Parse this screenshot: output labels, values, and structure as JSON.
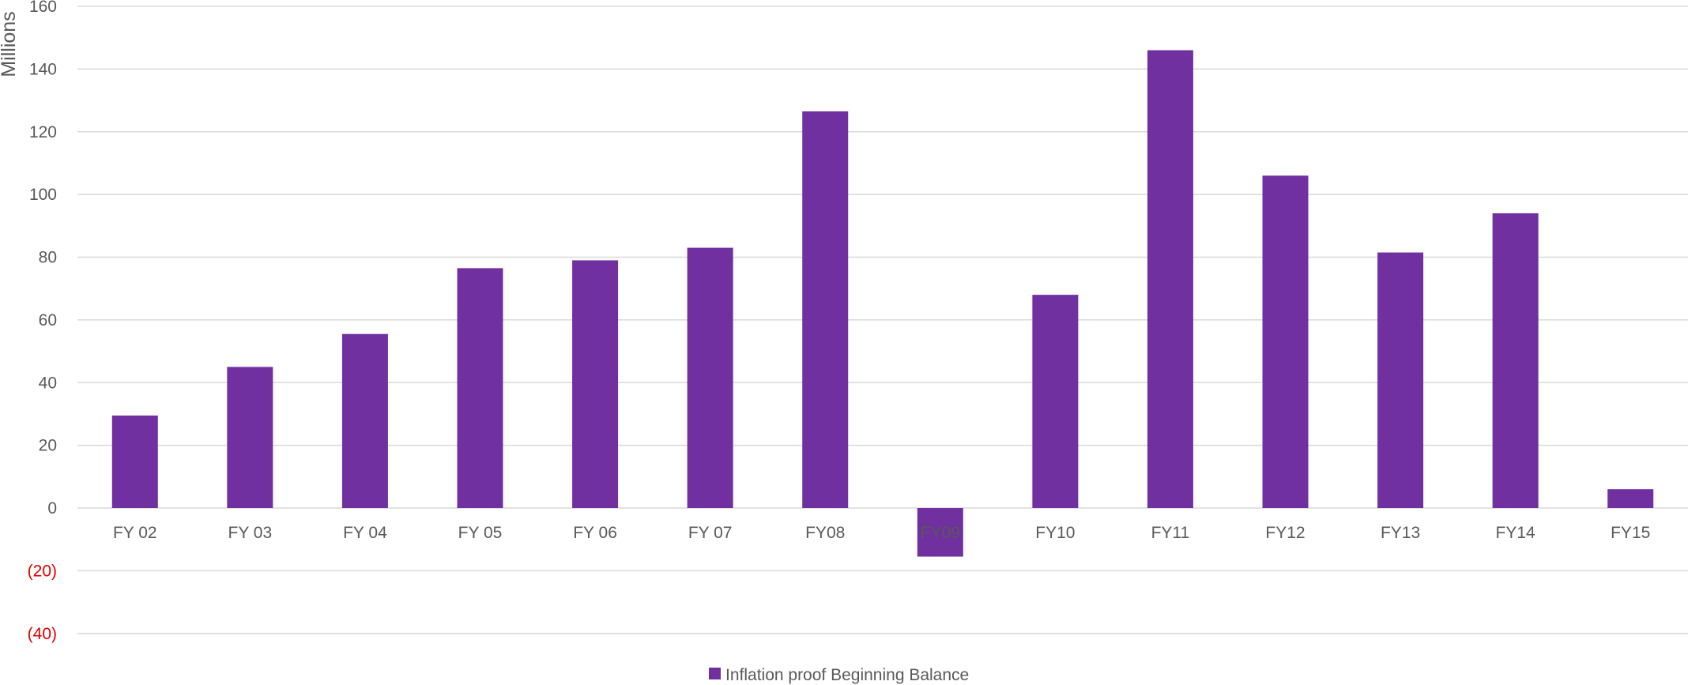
{
  "chart_data": {
    "type": "bar",
    "title": "",
    "xlabel": "",
    "ylabel": "Millions",
    "ylim": [
      -40,
      160
    ],
    "yticks": [
      160,
      140,
      120,
      100,
      80,
      60,
      40,
      20,
      0,
      -20,
      -40
    ],
    "ytick_labels": [
      "160",
      "140",
      "120",
      "100",
      "80",
      "60",
      "40",
      "20",
      "0",
      "(20)",
      "(40)"
    ],
    "negative_tick_color": "#e00000",
    "grid": true,
    "legend_position": "bottom",
    "categories": [
      "FY 02",
      "FY 03",
      "FY 04",
      "FY 05",
      "FY 06",
      "FY 07",
      "FY08",
      "FY09",
      "FY10",
      "FY11",
      "FY12",
      "FY13",
      "FY14",
      "FY15"
    ],
    "series": [
      {
        "name": "Inflation proof Beginning Balance",
        "color": "#7030a0",
        "values": [
          29.5,
          45,
          55.5,
          76.5,
          79,
          83,
          126.5,
          -15.5,
          68,
          146,
          106,
          81.5,
          94,
          6
        ]
      }
    ]
  }
}
